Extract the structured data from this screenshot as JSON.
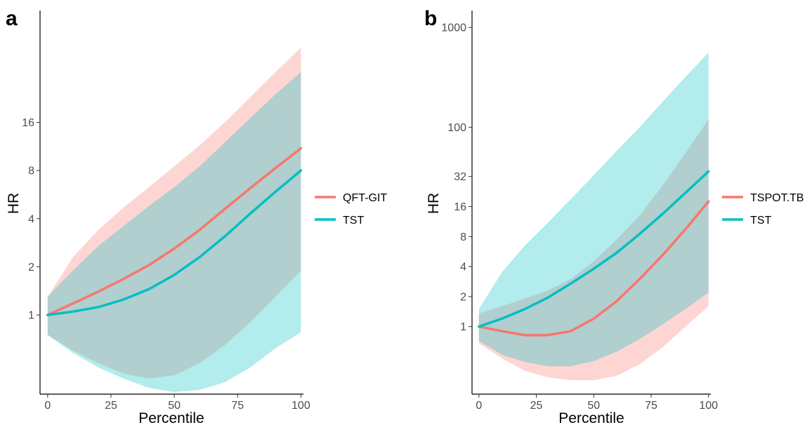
{
  "colors": {
    "red": "#F8766D",
    "teal": "#00BFC4"
  },
  "chart_data": [
    {
      "type": "line",
      "panel_label": "a",
      "xlabel": "Percentile",
      "ylabel": "HR",
      "y_scale": "log2",
      "xlim": [
        -3,
        101
      ],
      "ylim": [
        0.32,
        80
      ],
      "x_ticks": [
        0,
        25,
        50,
        75,
        100
      ],
      "y_ticks": [
        1,
        2,
        4,
        8,
        16
      ],
      "x_tick_labels": [
        "0",
        "25",
        "50",
        "75",
        "100"
      ],
      "y_tick_labels": [
        "1",
        "2",
        "4",
        "8",
        "16"
      ],
      "legend_position": "right",
      "series": [
        {
          "name": "QFT-GIT",
          "color": "#F8766D",
          "x": [
            0,
            10,
            20,
            30,
            40,
            50,
            60,
            70,
            80,
            90,
            100
          ],
          "y": [
            1.0,
            1.18,
            1.4,
            1.68,
            2.05,
            2.6,
            3.4,
            4.6,
            6.2,
            8.3,
            11.0
          ],
          "lower": [
            0.75,
            0.6,
            0.5,
            0.43,
            0.4,
            0.42,
            0.5,
            0.65,
            0.9,
            1.3,
            1.9
          ],
          "upper": [
            1.3,
            2.3,
            3.4,
            4.7,
            6.3,
            8.5,
            11.5,
            16.0,
            23.0,
            33.0,
            47.0
          ]
        },
        {
          "name": "TST",
          "color": "#00BFC4",
          "x": [
            0,
            10,
            20,
            30,
            40,
            50,
            60,
            70,
            80,
            90,
            100
          ],
          "y": [
            1.0,
            1.05,
            1.12,
            1.25,
            1.45,
            1.78,
            2.3,
            3.1,
            4.3,
            5.9,
            8.0
          ],
          "lower": [
            0.75,
            0.58,
            0.47,
            0.4,
            0.35,
            0.33,
            0.34,
            0.38,
            0.47,
            0.62,
            0.78
          ],
          "upper": [
            1.3,
            1.9,
            2.7,
            3.6,
            4.8,
            6.3,
            8.5,
            12.0,
            17.0,
            24.0,
            33.0
          ]
        }
      ]
    },
    {
      "type": "line",
      "panel_label": "b",
      "xlabel": "Percentile",
      "ylabel": "HR",
      "y_scale": "log2",
      "xlim": [
        -3,
        101
      ],
      "ylim": [
        0.21,
        1480
      ],
      "x_ticks": [
        0,
        25,
        50,
        75,
        100
      ],
      "y_ticks": [
        1,
        2,
        4,
        8,
        16,
        32,
        100,
        1000
      ],
      "x_tick_labels": [
        "0",
        "25",
        "50",
        "75",
        "100"
      ],
      "y_tick_labels": [
        "1",
        "2",
        "4",
        "8",
        "16",
        "32",
        "100",
        "1000"
      ],
      "legend_position": "right",
      "series": [
        {
          "name": "TSPOT.TB",
          "color": "#F8766D",
          "x": [
            0,
            10,
            20,
            30,
            40,
            50,
            60,
            70,
            80,
            90,
            100
          ],
          "y": [
            1.0,
            0.9,
            0.82,
            0.82,
            0.9,
            1.2,
            1.8,
            3.0,
            5.2,
            9.5,
            18.0
          ],
          "lower": [
            0.68,
            0.48,
            0.36,
            0.31,
            0.29,
            0.29,
            0.32,
            0.42,
            0.62,
            1.0,
            1.6
          ],
          "upper": [
            1.35,
            1.6,
            1.9,
            2.3,
            3.0,
            4.5,
            7.5,
            13.0,
            26.0,
            55.0,
            120.0
          ]
        },
        {
          "name": "TST",
          "color": "#00BFC4",
          "x": [
            0,
            10,
            20,
            30,
            40,
            50,
            60,
            70,
            80,
            90,
            100
          ],
          "y": [
            1.0,
            1.2,
            1.5,
            1.95,
            2.7,
            3.8,
            5.5,
            8.5,
            13.5,
            22.0,
            36.0
          ],
          "lower": [
            0.72,
            0.52,
            0.44,
            0.4,
            0.4,
            0.45,
            0.56,
            0.75,
            1.05,
            1.5,
            2.2
          ],
          "upper": [
            1.5,
            3.5,
            6.5,
            11.0,
            19.0,
            33.0,
            58.0,
            100.0,
            180.0,
            320.0,
            560.0
          ]
        }
      ]
    }
  ]
}
